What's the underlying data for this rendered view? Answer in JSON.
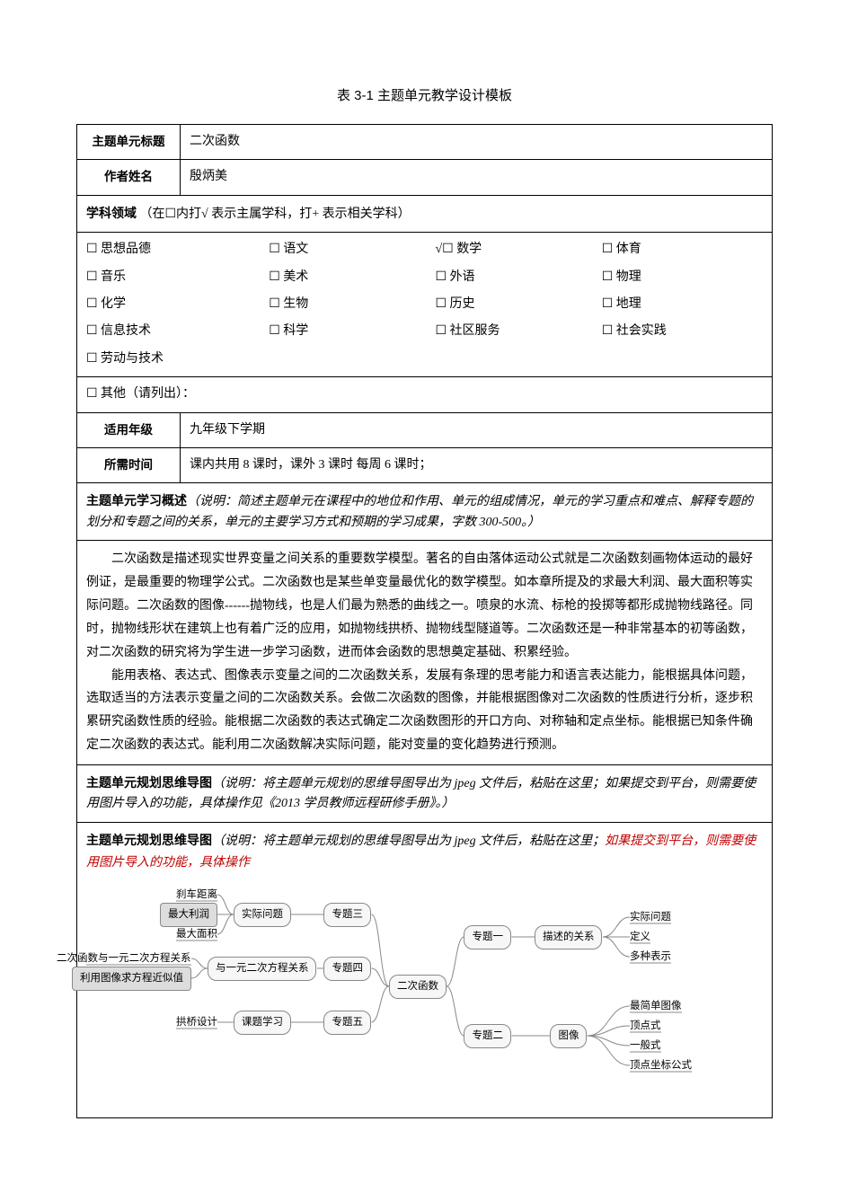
{
  "page_title": "表 3-1  主题单元教学设计模板",
  "rows": {
    "unit_title_label": "主题单元标题",
    "unit_title_value": "二次函数",
    "author_label": "作者姓名",
    "author_value": "殷炳美",
    "subject_area_label": "学科领域",
    "subject_area_note": "（在☐内打√ 表示主属学科，打+ 表示相关学科）",
    "grade_label": "适用年级",
    "grade_value": "九年级下学期",
    "time_label": "所需时间",
    "time_value": "课内共用 8 课时，课外 3 课时    每周 6 课时；"
  },
  "subjects": [
    {
      "label": "思想品德",
      "mark": ""
    },
    {
      "label": "语文",
      "mark": ""
    },
    {
      "label": "数学",
      "mark": "√"
    },
    {
      "label": "体育",
      "mark": ""
    },
    {
      "label": "音乐",
      "mark": ""
    },
    {
      "label": "美术",
      "mark": ""
    },
    {
      "label": "外语",
      "mark": ""
    },
    {
      "label": "物理",
      "mark": ""
    },
    {
      "label": "化学",
      "mark": ""
    },
    {
      "label": "生物",
      "mark": ""
    },
    {
      "label": "历史",
      "mark": ""
    },
    {
      "label": "地理",
      "mark": ""
    },
    {
      "label": "信息技术",
      "mark": ""
    },
    {
      "label": "科学",
      "mark": ""
    },
    {
      "label": "社区服务",
      "mark": ""
    },
    {
      "label": "社会实践",
      "mark": ""
    },
    {
      "label": "劳动与技术",
      "mark": ""
    }
  ],
  "other_label": "☐ 其他（请列出）：",
  "overview": {
    "head": "主题单元学习概述",
    "note": "（说明：简述主题单元在课程中的地位和作用、单元的组成情况，单元的学习重点和难点、解释专题的划分和专题之间的关系，单元的主要学习方式和预期的学习成果，字数 300-500。）",
    "p1": "二次函数是描述现实世界变量之间关系的重要数学模型。著名的自由落体运动公式就是二次函数刻画物体运动的最好例证，是最重要的物理学公式。二次函数也是某些单变量最优化的数学模型。如本章所提及的求最大利润、最大面积等实际问题。二次函数的图像------抛物线，也是人们最为熟悉的曲线之一。喷泉的水流、标枪的投掷等都形成抛物线路径。同时，抛物线形状在建筑上也有着广泛的应用，如抛物线拱桥、抛物线型隧道等。二次函数还是一种非常基本的初等函数，对二次函数的研究将为学生进一步学习函数，进而体会函数的思想奠定基础、积累经验。",
    "p2": "能用表格、表达式、图像表示变量之间的二次函数关系，发展有条理的思考能力和语言表达能力，能根据具体问题，选取适当的方法表示变量之间的二次函数关系。会做二次函数的图像，并能根据图像对二次函数的性质进行分析，逐步积累研究函数性质的经验。能根据二次函数的表达式确定二次函数图形的开口方向、对称轴和定点坐标。能根据已知条件确定二次函数的表达式。能利用二次函数解决实际问题，能对变量的变化趋势进行预测。"
  },
  "mindmap_head1": {
    "head": "主题单元规划思维导图",
    "note": "（说明：将主题单元规划的思维导图导出为 jpeg 文件后，粘贴在这里；如果提交到平台，则需要使用图片导入的功能，具体操作见《2013 学员教师远程研修手册》。）"
  },
  "mindmap_head2": {
    "head": "主题单元规划思维导图",
    "note_black": "（说明：将主题单元规划的思维导图导出为 jpeg 文件后，粘贴在这里；",
    "note_red": "如果提交到平台，则需要使用图片导入的功能，具体操作"
  },
  "mindmap": {
    "center": "二次函数",
    "right": [
      {
        "topic": "专题一",
        "sub": "描述的关系",
        "leaves": [
          "实际问题",
          "定义",
          "多种表示"
        ]
      },
      {
        "topic": "专题二",
        "sub": "图像",
        "leaves": [
          "最简单图像",
          "顶点式",
          "一般式",
          "顶点坐标公式"
        ]
      }
    ],
    "left": [
      {
        "topic": "专题三",
        "sub": "实际问题",
        "leaves": [
          "刹车距离",
          "最大利润",
          "最大面积"
        ],
        "hl_idx": 1
      },
      {
        "topic": "专题四",
        "sub": "与一元二次方程关系",
        "leaves": [
          "二次函数与一元二次方程关系",
          "利用图像求方程近似值"
        ],
        "hl_idx": 1
      },
      {
        "topic": "专题五",
        "sub": "课题学习",
        "leaves": [
          "拱桥设计"
        ]
      }
    ],
    "colors": {
      "node_border": "#888888",
      "node_bg": "#f7f7f7",
      "hl_bg": "#dddddd",
      "line": "#888888"
    }
  }
}
